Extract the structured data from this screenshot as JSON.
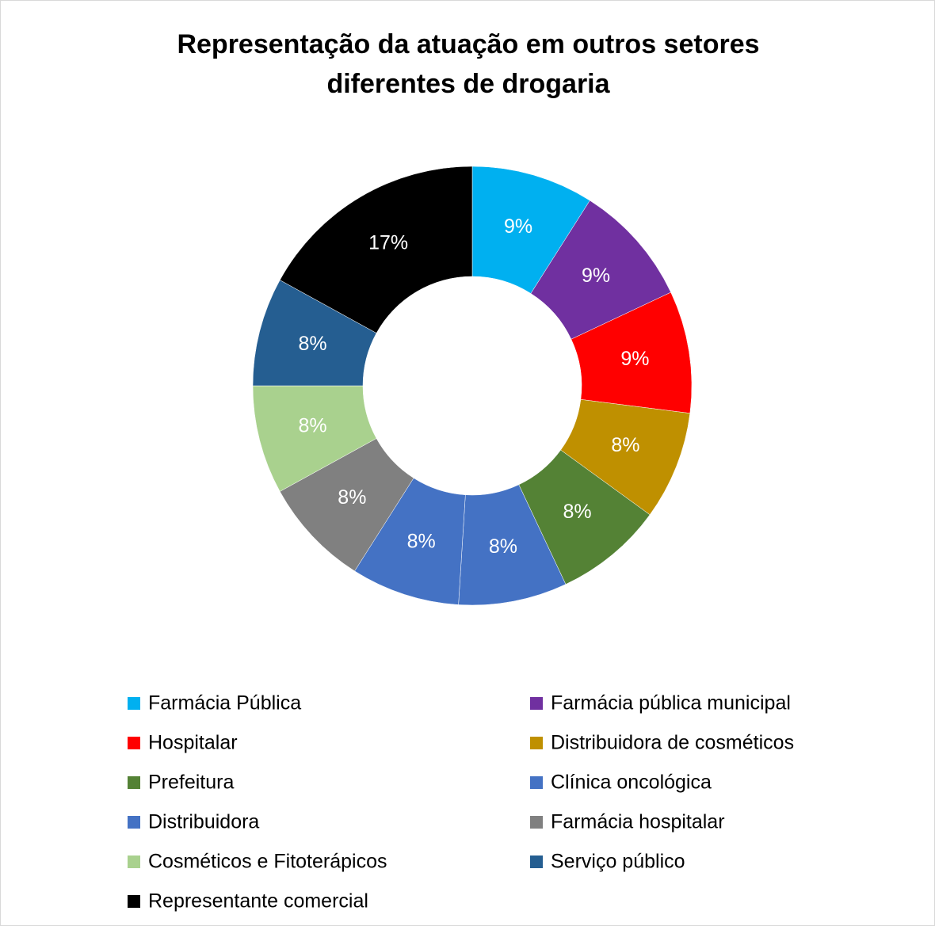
{
  "chart_data": {
    "type": "donut",
    "title": "Representação da atuação em outros setores diferentes de drogaria",
    "categories": [
      "Farmácia Pública",
      "Farmácia pública municipal",
      "Hospitalar",
      "Distribuidora de cosméticos",
      "Prefeitura",
      "Clínica oncológica",
      "Distribuidora",
      "Farmácia hospitalar",
      "Cosméticos e Fitoterápicos",
      "Serviço público",
      "Representante comercial"
    ],
    "values": [
      9,
      9,
      9,
      8,
      8,
      8,
      8,
      8,
      8,
      8,
      17
    ],
    "value_labels": [
      "9%",
      "9%",
      "9%",
      "8%",
      "8%",
      "8%",
      "8%",
      "8%",
      "8%",
      "8%",
      "17%"
    ],
    "colors": [
      "#00b0f0",
      "#7030a0",
      "#ff0000",
      "#bf9000",
      "#548235",
      "#4472c4",
      "#4472c4",
      "#808080",
      "#a9d18e",
      "#255e91",
      "#000000"
    ],
    "legend": "bottom"
  }
}
